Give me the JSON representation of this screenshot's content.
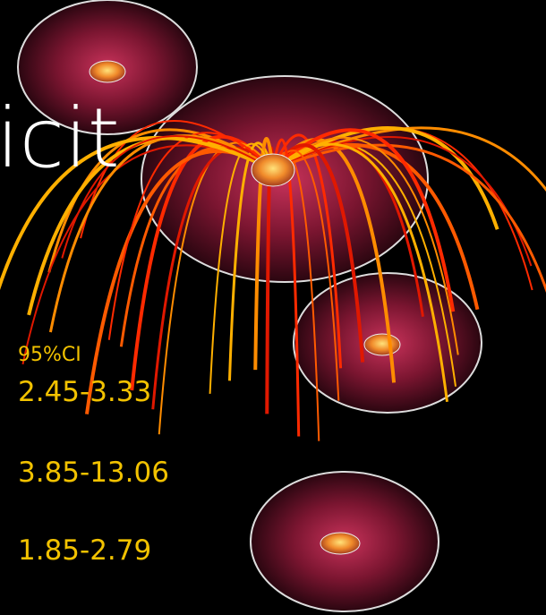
{
  "slide": {
    "title_fragment": "icit",
    "ci_header": "95%CI",
    "ci_values": [
      "2.45-3.33",
      "3.85-13.06",
      "1.85-2.79"
    ]
  }
}
